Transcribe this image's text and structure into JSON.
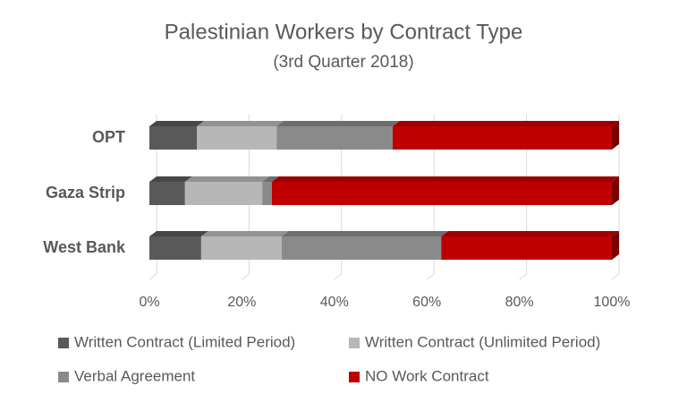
{
  "chart_data": {
    "type": "stacked-bar-3d",
    "orientation": "horizontal",
    "title": "Palestinian Workers by Contract Type",
    "subtitle": "(3rd Quarter 2018)",
    "categories": [
      "OPT",
      "Gaza Strip",
      "West Bank"
    ],
    "series": [
      {
        "name": "Written Contract (Limited Period)",
        "color": "#595959",
        "values": [
          10.3,
          7.7,
          11.2
        ]
      },
      {
        "name": "Written Contract (Unlimited Period)",
        "color": "#b7b7b7",
        "values": [
          17.2,
          16.7,
          17.4
        ]
      },
      {
        "name": "Verbal Agreement",
        "color": "#8a8a8a",
        "values": [
          25.1,
          2.1,
          34.5
        ]
      },
      {
        "name": "NO Work Contract",
        "color": "#c00000",
        "values": [
          47.4,
          73.5,
          36.9
        ]
      }
    ],
    "xlim": [
      0,
      100
    ],
    "xticks": [
      {
        "value": 0,
        "label": "0%"
      },
      {
        "value": 20,
        "label": "20%"
      },
      {
        "value": 40,
        "label": "40%"
      },
      {
        "value": 60,
        "label": "60%"
      },
      {
        "value": 80,
        "label": "80%"
      },
      {
        "value": 100,
        "label": "100%"
      }
    ],
    "grid": true,
    "legend": "bottom"
  }
}
